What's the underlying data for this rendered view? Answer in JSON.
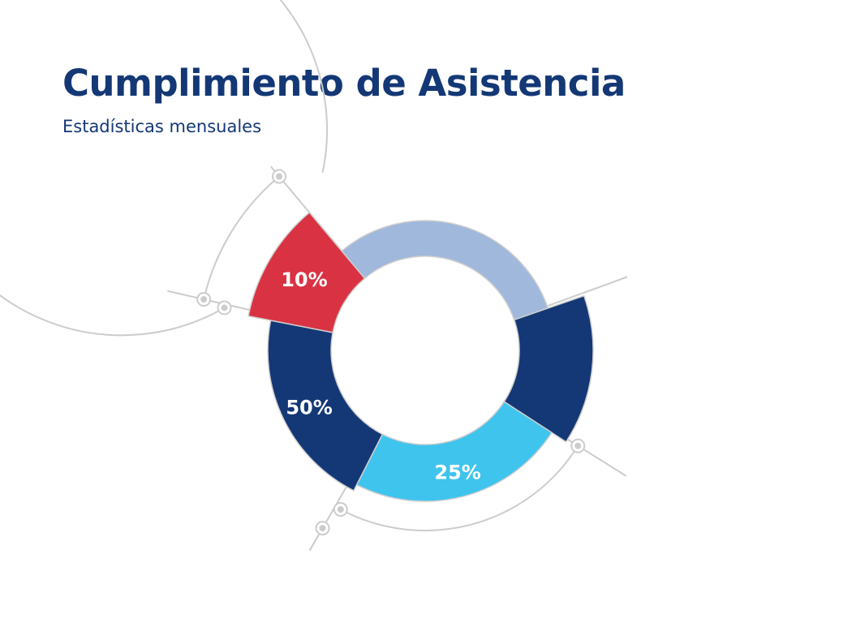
{
  "chart_data": {
    "type": "pie",
    "variant": "donut",
    "title": "Cumplimiento de Asistencia",
    "subtitle": "Estadísticas mensuales",
    "segments": [
      {
        "label": "",
        "color": "#a0b8dc"
      },
      {
        "label": "",
        "color": "#143875"
      },
      {
        "label": "25%",
        "value": 25,
        "color": "#3fc4ee"
      },
      {
        "label": "50%",
        "value": 50,
        "color": "#143875"
      },
      {
        "label": "10%",
        "value": 10,
        "color": "#d93343"
      }
    ],
    "annotation_color": "#cccccc"
  }
}
